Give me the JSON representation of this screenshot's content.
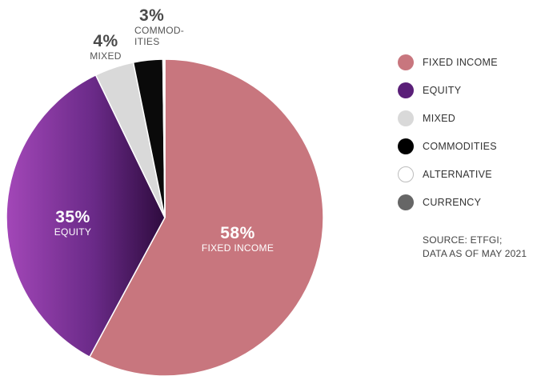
{
  "chart_data": {
    "type": "pie",
    "slices": [
      {
        "name": "FIXED INCOME",
        "label": "FIXED INCOME",
        "pct_label": "58%",
        "value": 58,
        "color": "#c8767e"
      },
      {
        "name": "EQUITY",
        "label": "EQUITY",
        "pct_label": "35%",
        "value": 35,
        "color": "#6a2a88"
      },
      {
        "name": "MIXED",
        "label": "MIXED",
        "pct_label": "4%",
        "value": 4,
        "color": "#d9d9d9"
      },
      {
        "name": "COMMODITIES",
        "label": "COMMOD-\nITIES",
        "pct_label": "3%",
        "value": 3,
        "color": "#0a0a0a"
      },
      {
        "name": "ALTERNATIVE",
        "label": "",
        "pct_label": "",
        "value": 0.1,
        "color": "#ffffff"
      },
      {
        "name": "CURRENCY",
        "label": "",
        "pct_label": "",
        "value": 0.1,
        "color": "#555555"
      }
    ],
    "legend": [
      {
        "label": "FIXED INCOME",
        "color": "#c8767e"
      },
      {
        "label": "EQUITY",
        "color": "#5a1f78"
      },
      {
        "label": "MIXED",
        "color": "#d9d9d9"
      },
      {
        "label": "COMMODITIES",
        "color": "#000000"
      },
      {
        "label": "ALTERNATIVE",
        "color": "#ffffff"
      },
      {
        "label": "CURRENCY",
        "color": "#666666"
      }
    ],
    "legend_position": "right",
    "source_lines": [
      "SOURCE:  ETFGI;",
      "DATA AS OF MAY 2021"
    ]
  }
}
